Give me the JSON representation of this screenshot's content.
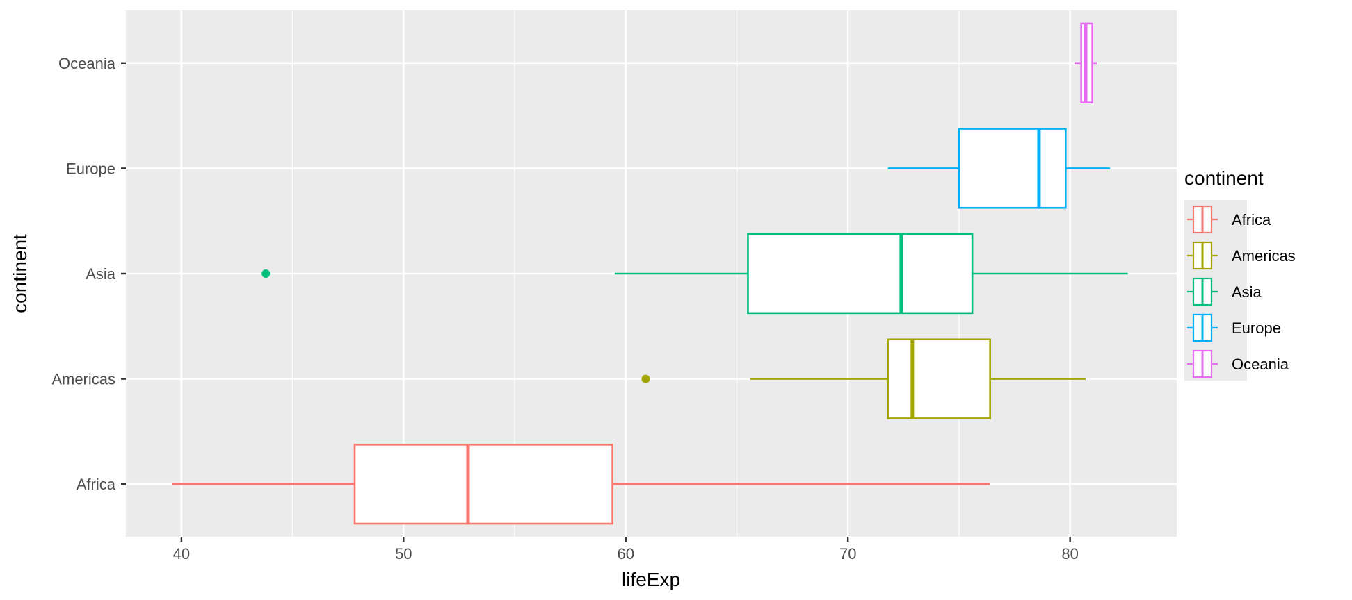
{
  "chart_data": {
    "type": "boxplot",
    "orientation": "horizontal",
    "xlabel": "lifeExp",
    "ylabel": "continent",
    "xlim": [
      37.5,
      84.8
    ],
    "x_ticks": [
      40,
      50,
      60,
      70,
      80
    ],
    "x_tick_labels": [
      "40",
      "50",
      "60",
      "70",
      "80"
    ],
    "grid": true,
    "legend": {
      "title": "continent",
      "position": "right",
      "items": [
        {
          "label": "Africa",
          "color": "#F8766D"
        },
        {
          "label": "Americas",
          "color": "#A3A500"
        },
        {
          "label": "Asia",
          "color": "#00BF7D"
        },
        {
          "label": "Europe",
          "color": "#00B0F6"
        },
        {
          "label": "Oceania",
          "color": "#E76BF3"
        }
      ]
    },
    "categories": [
      "Africa",
      "Americas",
      "Asia",
      "Europe",
      "Oceania"
    ],
    "series": [
      {
        "name": "Africa",
        "color": "#F8766D",
        "whisker_low": 39.6,
        "q1": 47.8,
        "median": 52.9,
        "q3": 59.4,
        "whisker_high": 76.4,
        "outliers": []
      },
      {
        "name": "Americas",
        "color": "#A3A500",
        "whisker_low": 65.6,
        "q1": 71.8,
        "median": 72.9,
        "q3": 76.4,
        "whisker_high": 80.7,
        "outliers": [
          60.9
        ]
      },
      {
        "name": "Asia",
        "color": "#00BF7D",
        "whisker_low": 59.5,
        "q1": 65.5,
        "median": 72.4,
        "q3": 75.6,
        "whisker_high": 82.6,
        "outliers": [
          43.8
        ]
      },
      {
        "name": "Europe",
        "color": "#00B0F6",
        "whisker_low": 71.8,
        "q1": 75.0,
        "median": 78.6,
        "q3": 79.8,
        "whisker_high": 81.8,
        "outliers": []
      },
      {
        "name": "Oceania",
        "color": "#E76BF3",
        "whisker_low": 80.2,
        "q1": 80.5,
        "median": 80.7,
        "q3": 81.0,
        "whisker_high": 81.2,
        "outliers": []
      }
    ]
  }
}
